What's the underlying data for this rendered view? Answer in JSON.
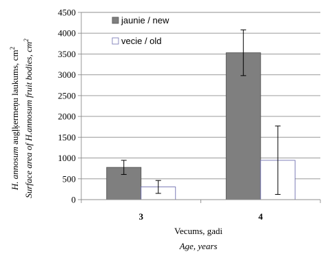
{
  "chart_data": {
    "type": "bar",
    "categories": [
      "3",
      "4"
    ],
    "series": [
      {
        "name": "jaunie / new",
        "color": "#7f7f7f",
        "values": [
          775,
          3530
        ],
        "error_low": [
          605,
          2980
        ],
        "error_high": [
          945,
          4080
        ]
      },
      {
        "name": "vecie / old",
        "color": "#ffffff",
        "values": [
          305,
          945
        ],
        "error_low": [
          150,
          125
        ],
        "error_high": [
          460,
          1770
        ]
      }
    ],
    "ylim": [
      0,
      4500
    ],
    "yticks": [
      0,
      500,
      1000,
      1500,
      2000,
      2500,
      3000,
      3500,
      4000,
      4500
    ],
    "grid": true,
    "legend_position": "top-left",
    "xlabel": "Vecums, gadi",
    "xlabel_en": "Age, years",
    "ylabel": {
      "italic_part": "H. annosum",
      "rest": " augļķermeņu laukums, cm",
      "superscript": "2"
    },
    "ylabel_en": {
      "text": "Surface area of H.annosum fruit bodies, cm",
      "superscript": "2"
    }
  }
}
